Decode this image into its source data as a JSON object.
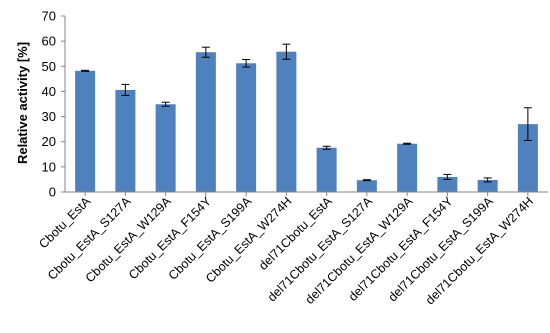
{
  "chart_data": {
    "type": "bar",
    "title": "",
    "xlabel": "",
    "ylabel": "Relative activity [%]",
    "ylim": [
      0,
      70
    ],
    "yticks": [
      0,
      10,
      20,
      30,
      40,
      50,
      60,
      70
    ],
    "grid": false,
    "legend": "none",
    "bar_color": "#4f81bd",
    "categories": [
      "Cbotu_EstA",
      "Cbotu_EstA_S127A",
      "Cbotu_EstA_W129A",
      "Cbotu_EstA_F154Y",
      "Cbotu_EstA_S199A",
      "Cbotu_EstA_W274H",
      "del71Cbotu_EstA",
      "del71Cbotu_EstA_S127A",
      "del71Cbotu_EstA_W129A",
      "del71Cbotu_EstA_F154Y",
      "del71Cbotu_EstA_S199A",
      "del71Cbotu_EstA_W274H"
    ],
    "values": [
      48.2,
      40.6,
      34.9,
      55.6,
      51.2,
      55.8,
      17.6,
      4.7,
      19.2,
      6.0,
      4.8,
      27.0
    ],
    "errors": [
      0.2,
      2.2,
      0.8,
      2.0,
      1.5,
      3.0,
      0.6,
      0.2,
      0.2,
      1.0,
      0.8,
      6.5
    ]
  }
}
